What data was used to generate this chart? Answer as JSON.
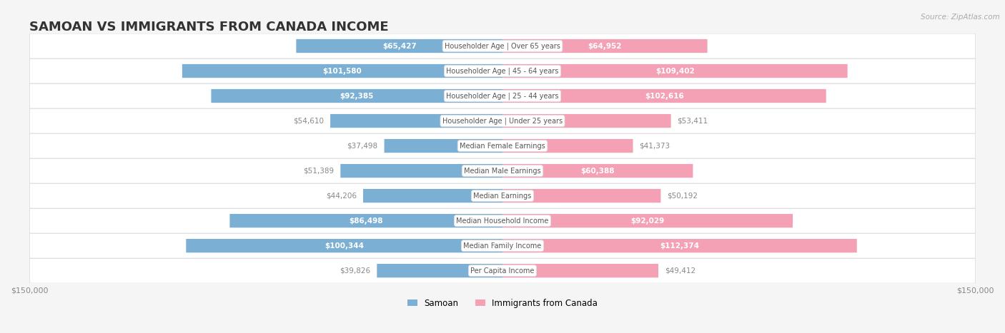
{
  "title": "SAMOAN VS IMMIGRANTS FROM CANADA INCOME",
  "source": "Source: ZipAtlas.com",
  "max_value": 150000,
  "categories": [
    "Per Capita Income",
    "Median Family Income",
    "Median Household Income",
    "Median Earnings",
    "Median Male Earnings",
    "Median Female Earnings",
    "Householder Age | Under 25 years",
    "Householder Age | 25 - 44 years",
    "Householder Age | 45 - 64 years",
    "Householder Age | Over 65 years"
  ],
  "samoan_values": [
    39826,
    100344,
    86498,
    44206,
    51389,
    37498,
    54610,
    92385,
    101580,
    65427
  ],
  "canada_values": [
    49412,
    112374,
    92029,
    50192,
    60388,
    41373,
    53411,
    102616,
    109402,
    64952
  ],
  "samoan_color": "#7bafd4",
  "canada_color": "#f4a0b5",
  "samoan_label_color_inside": "#ffffff",
  "canada_label_color_inside": "#ffffff",
  "samoan_label_color_outside": "#888888",
  "canada_label_color_outside": "#888888",
  "background_color": "#f5f5f5",
  "row_bg_color": "#ffffff",
  "row_border_color": "#dddddd",
  "center_label_bg": "#ffffff",
  "center_label_color": "#555555",
  "inside_label_threshold": 60000,
  "bar_height": 0.55,
  "figsize": [
    14.06,
    4.67
  ],
  "dpi": 100
}
